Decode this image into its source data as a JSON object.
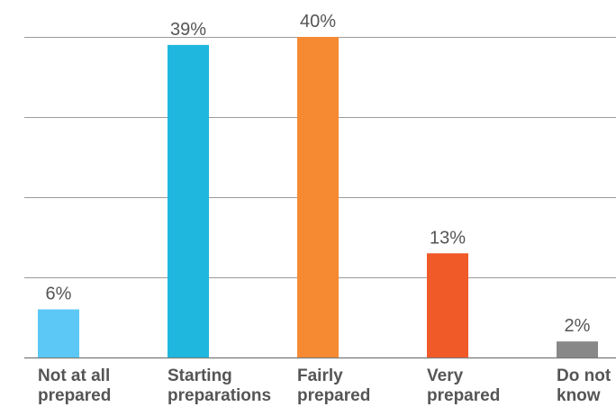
{
  "chart_data": {
    "type": "bar",
    "categories": [
      [
        "Not at all",
        "prepared"
      ],
      [
        "Starting",
        "preparations"
      ],
      [
        "Fairly",
        "prepared"
      ],
      [
        "Very",
        "prepared"
      ],
      [
        "Do not",
        "know"
      ]
    ],
    "values": [
      6,
      39,
      40,
      13,
      2
    ],
    "data_labels": [
      "6%",
      "39%",
      "40%",
      "13%",
      "2%"
    ],
    "colors": [
      "#5bc8f5",
      "#1fb7dd",
      "#f58a33",
      "#f05a28",
      "#888888"
    ],
    "ylim": [
      0,
      40
    ],
    "grid": true,
    "gridline_values": [
      0,
      10,
      20,
      30,
      40
    ],
    "title": "",
    "xlabel": "",
    "ylabel": ""
  }
}
